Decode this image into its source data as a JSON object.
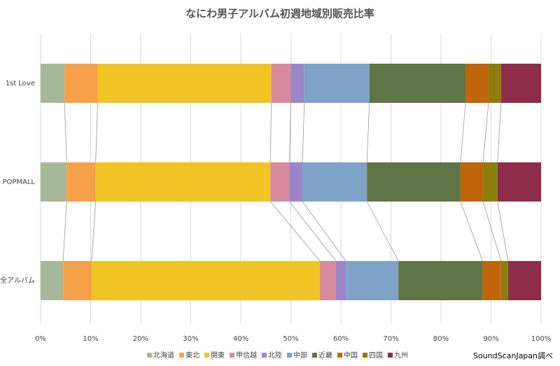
{
  "chart_data": {
    "type": "stacked-hbar",
    "title": "なにわ男子アルバム初週地域別販売比率",
    "categories": [
      "1st Love",
      "POPMALL",
      "全アルバム"
    ],
    "series": [
      {
        "name": "北海道",
        "color": "#a7b898",
        "values": [
          4.8,
          5.2,
          4.5
        ]
      },
      {
        "name": "東北",
        "color": "#f7a04a",
        "values": [
          6.6,
          5.8,
          5.7
        ]
      },
      {
        "name": "関東",
        "color": "#f0c424",
        "values": [
          34.7,
          34.9,
          45.6
        ]
      },
      {
        "name": "甲信越",
        "color": "#d98a9e",
        "values": [
          3.9,
          3.8,
          3.2
        ]
      },
      {
        "name": "北陸",
        "color": "#9c86c8",
        "values": [
          2.7,
          2.6,
          2.0
        ]
      },
      {
        "name": "中部",
        "color": "#7fa2c9",
        "values": [
          13.0,
          12.9,
          10.5
        ]
      },
      {
        "name": "近畿",
        "color": "#5f7545",
        "values": [
          19.2,
          18.7,
          16.8
        ]
      },
      {
        "name": "中国",
        "color": "#c0650c",
        "values": [
          4.6,
          4.5,
          3.7
        ]
      },
      {
        "name": "四国",
        "color": "#8d7d0c",
        "values": [
          2.5,
          2.9,
          1.4
        ]
      },
      {
        "name": "九州",
        "color": "#8e2c4c",
        "values": [
          8.0,
          8.7,
          6.6
        ]
      }
    ],
    "xlim": [
      0,
      100
    ],
    "xticks": [
      {
        "value": 0,
        "label": "0%"
      },
      {
        "value": 10,
        "label": "10%"
      },
      {
        "value": 20,
        "label": "20%"
      },
      {
        "value": 30,
        "label": "30%"
      },
      {
        "value": 40,
        "label": "40%"
      },
      {
        "value": 50,
        "label": "50%"
      },
      {
        "value": 60,
        "label": "60%"
      },
      {
        "value": 70,
        "label": "70%"
      },
      {
        "value": 80,
        "label": "80%"
      },
      {
        "value": 90,
        "label": "90%"
      },
      {
        "value": 100,
        "label": "100%"
      }
    ],
    "grid": true,
    "legend": "bottom",
    "note": "SoundScanJapan調べ"
  }
}
